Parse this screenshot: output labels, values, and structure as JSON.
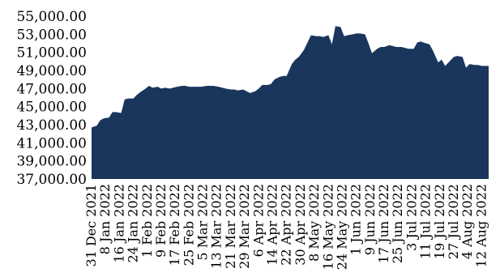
{
  "chart_data": {
    "type": "area",
    "title": "",
    "xlabel": "",
    "ylabel": "",
    "ylim": [
      37000,
      55000
    ],
    "y_ticks": [
      "37,000.00",
      "39,000.00",
      "41,000.00",
      "43,000.00",
      "45,000.00",
      "47,000.00",
      "49,000.00",
      "51,000.00",
      "53,000.00",
      "55,000.00"
    ],
    "y_tick_values": [
      37000,
      39000,
      41000,
      43000,
      45000,
      47000,
      49000,
      51000,
      53000,
      55000
    ],
    "x_ticks": [
      "31 Dec 2021",
      "8 Jan 2022",
      "16 Jan 2022",
      "24 Jan 2022",
      "1 Feb 2022",
      "9 Feb 2022",
      "17 Feb 2022",
      "25 Feb 2022",
      "5 Mar 2022",
      "13 Mar 2022",
      "21 Mar 2022",
      "29 Mar 2022",
      "6 Apr 2022",
      "14 Apr 2022",
      "22 Apr 2022",
      "30 Apr 2022",
      "8 May 2022",
      "16 May 2022",
      "24 May 2022",
      "1 Jun 2022",
      "9 Jun 2022",
      "17 Jun 2022",
      "25 Jun 2022",
      "3 Jul 2022",
      "11 Jul 2022",
      "19 Jul 2022",
      "27 Jul 2022",
      "4 Aug 2022",
      "12 Aug 2022"
    ],
    "fill_color": "#1b365d",
    "grid": false,
    "x": [
      "2021-12-31",
      "2022-01-03",
      "2022-01-05",
      "2022-01-07",
      "2022-01-10",
      "2022-01-12",
      "2022-01-14",
      "2022-01-17",
      "2022-01-19",
      "2022-01-21",
      "2022-01-24",
      "2022-01-26",
      "2022-01-28",
      "2022-01-31",
      "2022-02-02",
      "2022-02-04",
      "2022-02-07",
      "2022-02-09",
      "2022-02-11",
      "2022-02-14",
      "2022-02-16",
      "2022-02-18",
      "2022-02-21",
      "2022-02-23",
      "2022-02-25",
      "2022-02-28",
      "2022-03-02",
      "2022-03-04",
      "2022-03-07",
      "2022-03-09",
      "2022-03-11",
      "2022-03-14",
      "2022-03-16",
      "2022-03-18",
      "2022-03-21",
      "2022-03-23",
      "2022-03-25",
      "2022-03-28",
      "2022-03-30",
      "2022-04-01",
      "2022-04-04",
      "2022-04-06",
      "2022-04-08",
      "2022-04-11",
      "2022-04-13",
      "2022-04-15",
      "2022-04-18",
      "2022-04-20",
      "2022-04-22",
      "2022-04-25",
      "2022-04-27",
      "2022-04-29",
      "2022-05-02",
      "2022-05-04",
      "2022-05-06",
      "2022-05-09",
      "2022-05-11",
      "2022-05-13",
      "2022-05-16",
      "2022-05-18",
      "2022-05-20",
      "2022-05-23",
      "2022-05-25",
      "2022-05-27",
      "2022-05-30",
      "2022-06-01",
      "2022-06-03",
      "2022-06-06",
      "2022-06-08",
      "2022-06-10",
      "2022-06-13",
      "2022-06-15",
      "2022-06-17",
      "2022-06-20",
      "2022-06-22",
      "2022-06-24",
      "2022-06-27",
      "2022-06-29",
      "2022-07-01",
      "2022-07-04",
      "2022-07-06",
      "2022-07-08",
      "2022-07-11",
      "2022-07-13",
      "2022-07-15",
      "2022-07-18",
      "2022-07-20",
      "2022-07-22",
      "2022-07-25",
      "2022-07-27",
      "2022-07-29",
      "2022-08-01",
      "2022-08-03",
      "2022-08-05",
      "2022-08-08",
      "2022-08-10",
      "2022-08-12",
      "2022-08-15"
    ],
    "values": [
      42700,
      42900,
      43500,
      43700,
      43800,
      44400,
      44400,
      44300,
      45800,
      45900,
      45900,
      46300,
      46600,
      47000,
      47300,
      47100,
      47200,
      47000,
      47100,
      47000,
      47100,
      47200,
      47300,
      47300,
      47200,
      47200,
      47200,
      47200,
      47300,
      47300,
      47300,
      47200,
      47100,
      47000,
      46900,
      46900,
      46800,
      46900,
      46700,
      46500,
      46700,
      47000,
      47400,
      47400,
      47500,
      48000,
      48300,
      48400,
      48400,
      49700,
      50200,
      50500,
      51300,
      52100,
      52900,
      52800,
      52800,
      52700,
      52900,
      51900,
      53900,
      53800,
      52800,
      52900,
      53000,
      53100,
      53100,
      53000,
      52000,
      50900,
      51400,
      51600,
      51600,
      51800,
      51700,
      51600,
      51600,
      51500,
      51400,
      51400,
      52100,
      52200,
      52000,
      51900,
      51200,
      49900,
      50200,
      49500,
      50100,
      50500,
      50600,
      50500,
      49300,
      49700,
      49600,
      49600,
      49500,
      49500
    ]
  }
}
